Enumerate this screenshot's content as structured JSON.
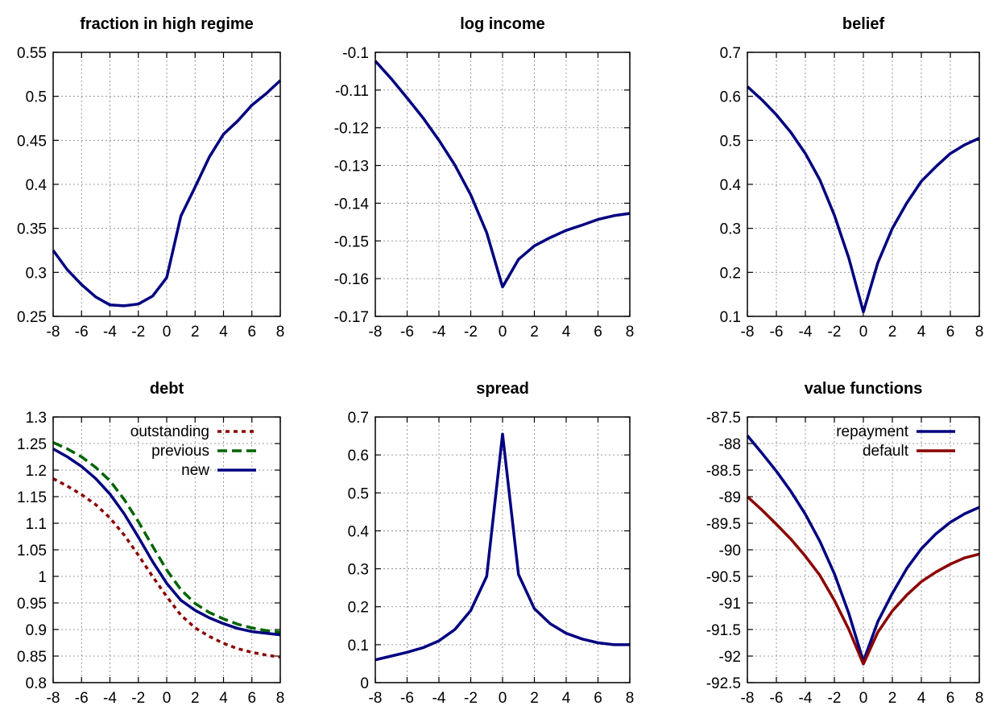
{
  "chart_data": [
    {
      "type": "line",
      "title": "fraction in high regime",
      "xlim": [
        -8,
        8
      ],
      "ylim": [
        0.25,
        0.55
      ],
      "xticks": [
        -8,
        -6,
        -4,
        -2,
        0,
        2,
        4,
        6,
        8
      ],
      "xtick_labels": [
        "-8",
        "-6",
        "-4",
        "-2",
        "0",
        "2",
        "4",
        "6",
        "8"
      ],
      "yticks": [
        0.25,
        0.3,
        0.35,
        0.4,
        0.45,
        0.5,
        0.55
      ],
      "ytick_labels": [
        "0.25",
        "0.3",
        "0.35",
        "0.4",
        "0.45",
        "0.5",
        "0.55"
      ],
      "grid": true,
      "series": [
        {
          "color": "#000080",
          "dash": "solid",
          "x": [
            -8,
            -7,
            -6,
            -5,
            -4,
            -3,
            -2,
            -1,
            0,
            1,
            2,
            3,
            4,
            5,
            6,
            7,
            8
          ],
          "y": [
            0.325,
            0.303,
            0.286,
            0.272,
            0.263,
            0.262,
            0.264,
            0.273,
            0.294,
            0.364,
            0.397,
            0.431,
            0.457,
            0.472,
            0.49,
            0.503,
            0.518
          ]
        }
      ]
    },
    {
      "type": "line",
      "title": "log income",
      "xlim": [
        -8,
        8
      ],
      "ylim": [
        -0.17,
        -0.1
      ],
      "xticks": [
        -8,
        -6,
        -4,
        -2,
        0,
        2,
        4,
        6,
        8
      ],
      "xtick_labels": [
        "-8",
        "-6",
        "-4",
        "-2",
        "0",
        "2",
        "4",
        "6",
        "8"
      ],
      "yticks": [
        -0.17,
        -0.16,
        -0.15,
        -0.14,
        -0.13,
        -0.12,
        -0.11,
        -0.1
      ],
      "ytick_labels": [
        "-0.17",
        "-0.16",
        "-0.15",
        "-0.14",
        "-0.13",
        "-0.12",
        "-0.11",
        "-0.1"
      ],
      "grid": true,
      "series": [
        {
          "color": "#000080",
          "dash": "solid",
          "x": [
            -8,
            -7,
            -6,
            -5,
            -4,
            -3,
            -2,
            -1,
            0,
            1,
            2,
            3,
            4,
            5,
            6,
            7,
            8
          ],
          "y": [
            -0.1023,
            -0.107,
            -0.1121,
            -0.1174,
            -0.1233,
            -0.1299,
            -0.1378,
            -0.1478,
            -0.1622,
            -0.1549,
            -0.1513,
            -0.1491,
            -0.1472,
            -0.1458,
            -0.1443,
            -0.1433,
            -0.1427
          ]
        }
      ]
    },
    {
      "type": "line",
      "title": "belief",
      "xlim": [
        -8,
        8
      ],
      "ylim": [
        0.1,
        0.7
      ],
      "xticks": [
        -8,
        -6,
        -4,
        -2,
        0,
        2,
        4,
        6,
        8
      ],
      "xtick_labels": [
        "-8",
        "-6",
        "-4",
        "-2",
        "0",
        "2",
        "4",
        "6",
        "8"
      ],
      "yticks": [
        0.1,
        0.2,
        0.3,
        0.4,
        0.5,
        0.6,
        0.7
      ],
      "ytick_labels": [
        "0.1",
        "0.2",
        "0.3",
        "0.4",
        "0.5",
        "0.6",
        "0.7"
      ],
      "grid": true,
      "series": [
        {
          "color": "#000080",
          "dash": "solid",
          "x": [
            -8,
            -7,
            -6,
            -5,
            -4,
            -3,
            -2,
            -1,
            0,
            1,
            2,
            3,
            4,
            5,
            6,
            7,
            8
          ],
          "y": [
            0.622,
            0.592,
            0.558,
            0.518,
            0.47,
            0.41,
            0.33,
            0.232,
            0.11,
            0.222,
            0.3,
            0.358,
            0.407,
            0.44,
            0.47,
            0.49,
            0.505
          ]
        }
      ]
    },
    {
      "type": "line",
      "title": "debt",
      "xlim": [
        -8,
        8
      ],
      "ylim": [
        0.8,
        1.3
      ],
      "xticks": [
        -8,
        -6,
        -4,
        -2,
        0,
        2,
        4,
        6,
        8
      ],
      "xtick_labels": [
        "-8",
        "-6",
        "-4",
        "-2",
        "0",
        "2",
        "4",
        "6",
        "8"
      ],
      "yticks": [
        0.8,
        0.85,
        0.9,
        0.95,
        1,
        1.05,
        1.1,
        1.15,
        1.2,
        1.25,
        1.3
      ],
      "ytick_labels": [
        "0.8",
        "0.85",
        "0.9",
        "0.95",
        "1",
        "1.05",
        "1.1",
        "1.15",
        "1.2",
        "1.25",
        "1.3"
      ],
      "grid": true,
      "legend_position": "top-right",
      "series": [
        {
          "name": "outstanding",
          "color": "#8b0000",
          "dash": "dotted",
          "x": [
            -8,
            -7,
            -6,
            -5,
            -4,
            -3,
            -2,
            -1,
            0,
            1,
            2,
            3,
            4,
            5,
            6,
            7,
            8
          ],
          "y": [
            1.184,
            1.17,
            1.154,
            1.135,
            1.11,
            1.078,
            1.04,
            1.0,
            0.962,
            0.927,
            0.903,
            0.887,
            0.874,
            0.864,
            0.857,
            0.852,
            0.848
          ]
        },
        {
          "name": "previous",
          "color": "#006400",
          "dash": "dashed",
          "x": [
            -8,
            -7,
            -6,
            -5,
            -4,
            -3,
            -2,
            -1,
            0,
            1,
            2,
            3,
            4,
            5,
            6,
            7,
            8
          ],
          "y": [
            1.252,
            1.24,
            1.225,
            1.205,
            1.18,
            1.145,
            1.103,
            1.057,
            1.012,
            0.975,
            0.949,
            0.932,
            0.92,
            0.91,
            0.903,
            0.898,
            0.895
          ]
        },
        {
          "name": "new",
          "color": "#000080",
          "dash": "solid",
          "x": [
            -8,
            -7,
            -6,
            -5,
            -4,
            -3,
            -2,
            -1,
            0,
            1,
            2,
            3,
            4,
            5,
            6,
            7,
            8
          ],
          "y": [
            1.24,
            1.225,
            1.207,
            1.184,
            1.155,
            1.118,
            1.074,
            1.028,
            0.987,
            0.955,
            0.936,
            0.922,
            0.911,
            0.902,
            0.896,
            0.893,
            0.89
          ]
        }
      ]
    },
    {
      "type": "line",
      "title": "spread",
      "xlim": [
        -8,
        8
      ],
      "ylim": [
        0,
        0.7
      ],
      "xticks": [
        -8,
        -6,
        -4,
        -2,
        0,
        2,
        4,
        6,
        8
      ],
      "xtick_labels": [
        "-8",
        "-6",
        "-4",
        "-2",
        "0",
        "2",
        "4",
        "6",
        "8"
      ],
      "yticks": [
        0,
        0.1,
        0.2,
        0.3,
        0.4,
        0.5,
        0.6,
        0.7
      ],
      "ytick_labels": [
        "0",
        "0.1",
        "0.2",
        "0.3",
        "0.4",
        "0.5",
        "0.6",
        "0.7"
      ],
      "grid": true,
      "series": [
        {
          "color": "#000080",
          "dash": "solid",
          "x": [
            -8,
            -7,
            -6,
            -5,
            -4,
            -3,
            -2,
            -1,
            0,
            1,
            2,
            3,
            4,
            5,
            6,
            7,
            8
          ],
          "y": [
            0.06,
            0.07,
            0.08,
            0.092,
            0.11,
            0.14,
            0.19,
            0.28,
            0.655,
            0.285,
            0.195,
            0.155,
            0.13,
            0.115,
            0.105,
            0.1,
            0.1
          ]
        }
      ]
    },
    {
      "type": "line",
      "title": "value functions",
      "xlim": [
        -8,
        8
      ],
      "ylim": [
        -92.5,
        -87.5
      ],
      "xticks": [
        -8,
        -6,
        -4,
        -2,
        0,
        2,
        4,
        6,
        8
      ],
      "xtick_labels": [
        "-8",
        "-6",
        "-4",
        "-2",
        "0",
        "2",
        "4",
        "6",
        "8"
      ],
      "yticks": [
        -92.5,
        -92,
        -91.5,
        -91,
        -90.5,
        -90,
        -89.5,
        -89,
        -88.5,
        -88,
        -87.5
      ],
      "ytick_labels": [
        "-92.5",
        "-92",
        "-91.5",
        "-91",
        "-90.5",
        "-90",
        "-89.5",
        "-89",
        "-88.5",
        "-88",
        "-87.5"
      ],
      "grid": true,
      "legend_position": "top-right",
      "series": [
        {
          "name": "repayment",
          "color": "#000080",
          "dash": "solid",
          "x": [
            -8,
            -7,
            -6,
            -5,
            -4,
            -3,
            -2,
            -1,
            0,
            1,
            2,
            3,
            4,
            5,
            6,
            7,
            8
          ],
          "y": [
            -87.85,
            -88.18,
            -88.52,
            -88.9,
            -89.33,
            -89.84,
            -90.45,
            -91.2,
            -92.1,
            -91.35,
            -90.82,
            -90.35,
            -89.98,
            -89.7,
            -89.48,
            -89.32,
            -89.2
          ]
        },
        {
          "name": "default",
          "color": "#8b0000",
          "dash": "solid",
          "x": [
            -8,
            -7,
            -6,
            -5,
            -4,
            -3,
            -2,
            -1,
            0,
            1,
            2,
            3,
            4,
            5,
            6,
            7,
            8
          ],
          "y": [
            -89.0,
            -89.25,
            -89.52,
            -89.8,
            -90.12,
            -90.48,
            -90.95,
            -91.5,
            -92.15,
            -91.55,
            -91.15,
            -90.85,
            -90.6,
            -90.42,
            -90.27,
            -90.15,
            -90.08
          ]
        }
      ]
    }
  ]
}
